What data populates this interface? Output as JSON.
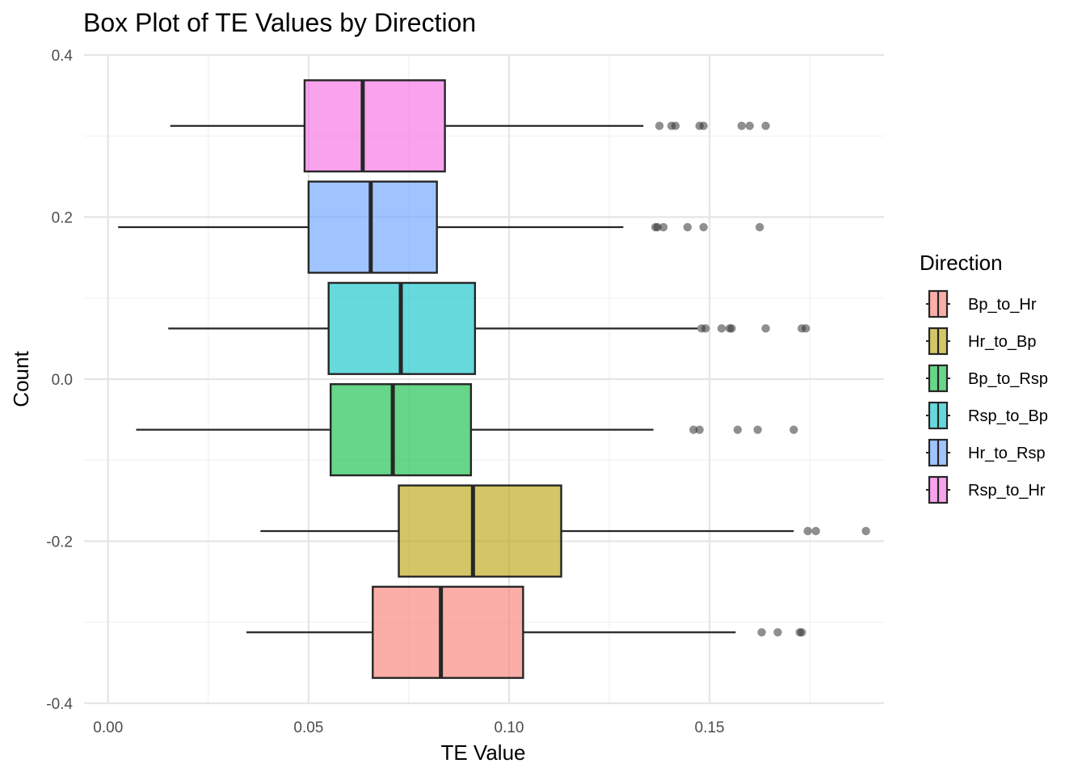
{
  "chart_data": {
    "type": "boxplot",
    "title": "Box Plot of TE Values by Direction",
    "xlabel": "TE Value",
    "ylabel": "Count",
    "xlim": [
      -0.006,
      0.1935
    ],
    "ylim": [
      -0.4,
      0.4
    ],
    "x_ticks": [
      {
        "value": 0.0,
        "label": "0.00"
      },
      {
        "value": 0.05,
        "label": "0.05"
      },
      {
        "value": 0.1,
        "label": "0.10"
      },
      {
        "value": 0.15,
        "label": "0.15"
      }
    ],
    "x_minor_ticks": [
      0.025,
      0.075,
      0.125,
      0.175
    ],
    "y_ticks": [
      {
        "value": 0.4,
        "label": "0.4"
      },
      {
        "value": 0.2,
        "label": "0.2"
      },
      {
        "value": 0.0,
        "label": "0.0"
      },
      {
        "value": -0.2,
        "label": "-0.2"
      },
      {
        "value": -0.4,
        "label": "-0.4"
      }
    ],
    "y_minor_ticks": [
      0.3,
      0.1,
      -0.1,
      -0.3
    ],
    "grid": true,
    "legend_title": "Direction",
    "legend_position": "right",
    "series": [
      {
        "name": "Bp_to_Hr",
        "color": "#F8766D",
        "y_center": -0.3125,
        "y_half_height": 0.05625,
        "whisker_low": 0.0345,
        "q1": 0.066,
        "median": 0.083,
        "q3": 0.1035,
        "whisker_high": 0.1565,
        "outliers": [
          0.163,
          0.167,
          0.1725,
          0.173
        ]
      },
      {
        "name": "Hr_to_Bp",
        "color": "#B79F00",
        "y_center": -0.1875,
        "y_half_height": 0.05625,
        "whisker_low": 0.038,
        "q1": 0.0725,
        "median": 0.091,
        "q3": 0.113,
        "whisker_high": 0.171,
        "outliers": [
          0.1745,
          0.1765,
          0.189
        ]
      },
      {
        "name": "Bp_to_Rsp",
        "color": "#00BA38",
        "y_center": -0.0625,
        "y_half_height": 0.05625,
        "whisker_low": 0.007,
        "q1": 0.0555,
        "median": 0.071,
        "q3": 0.0905,
        "whisker_high": 0.136,
        "outliers": [
          0.146,
          0.1475,
          0.157,
          0.162,
          0.171
        ]
      },
      {
        "name": "Rsp_to_Bp",
        "color": "#00BFC4",
        "y_center": 0.0625,
        "y_half_height": 0.05625,
        "whisker_low": 0.015,
        "q1": 0.055,
        "median": 0.073,
        "q3": 0.0915,
        "whisker_high": 0.147,
        "outliers": [
          0.148,
          0.149,
          0.153,
          0.155,
          0.1555,
          0.164,
          0.173,
          0.174
        ]
      },
      {
        "name": "Hr_to_Rsp",
        "color": "#619CFF",
        "y_center": 0.1875,
        "y_half_height": 0.05625,
        "whisker_low": 0.0025,
        "q1": 0.05,
        "median": 0.0655,
        "q3": 0.082,
        "whisker_high": 0.1285,
        "outliers": [
          0.1365,
          0.137,
          0.1385,
          0.1445,
          0.1485,
          0.1625
        ]
      },
      {
        "name": "Rsp_to_Hr",
        "color": "#F564E3",
        "y_center": 0.3125,
        "y_half_height": 0.05625,
        "whisker_low": 0.0155,
        "q1": 0.049,
        "median": 0.0635,
        "q3": 0.084,
        "whisker_high": 0.1335,
        "outliers": [
          0.1375,
          0.1405,
          0.1415,
          0.1475,
          0.1485,
          0.158,
          0.16,
          0.164
        ]
      }
    ]
  }
}
